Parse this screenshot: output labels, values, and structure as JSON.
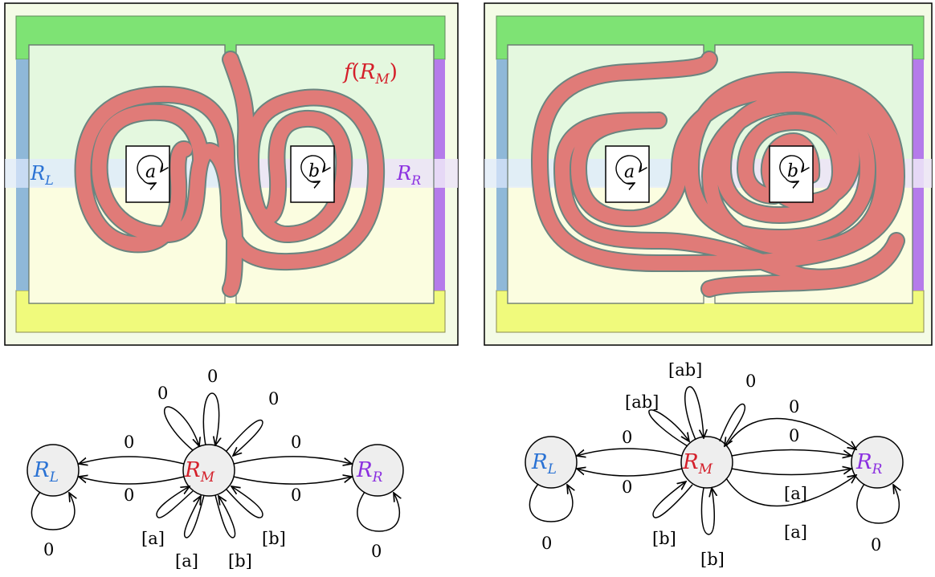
{
  "colors": {
    "left_strip": "#8fb8d8",
    "right_strip": "#b57bea",
    "top_strip": "#7ee374",
    "bottom_strip": "#f0fa7c",
    "tube_fill": "#e07b78",
    "tube_stroke": "#6a8580",
    "region_top": "#e4f8df",
    "region_bottom": "#fbfde0",
    "band": "#e8f0ff",
    "band_mid": "#f7e4ee",
    "label_blue": "#2a72d4",
    "label_red": "#d41f2a",
    "label_purple": "#8b2fe0"
  },
  "panel_left": {
    "label_left": "R_L",
    "label_right": "R_R",
    "image_label": "f(R_M)",
    "hole_a": "a",
    "hole_b": "b"
  },
  "panel_right": {
    "hole_a": "a",
    "hole_b": "b"
  },
  "graph_left": {
    "nodes": [
      {
        "id": "RL",
        "label": "R_L"
      },
      {
        "id": "RM",
        "label": "R_M"
      },
      {
        "id": "RR",
        "label": "R_R"
      }
    ],
    "edge_labels": {
      "top": "0",
      "top_left": "0",
      "top_right": "0",
      "to_RL_upper": "0",
      "to_RL_lower": "0",
      "to_RR_upper": "0",
      "to_RR_lower": "0",
      "loop_RL": "0",
      "loop_RR": "0",
      "bottom_a1": "[a]",
      "bottom_a2": "[a]",
      "bottom_b1": "[b]",
      "bottom_b2": "[b]"
    }
  },
  "graph_right": {
    "nodes": [
      {
        "id": "RL",
        "label": "R_L"
      },
      {
        "id": "RM",
        "label": "R_M"
      },
      {
        "id": "RR",
        "label": "R_R"
      }
    ],
    "edge_labels": {
      "ab_top": "[ab]",
      "ab_left": "[ab]",
      "top_right": "0",
      "to_RL_upper": "0",
      "to_RL_lower": "0",
      "to_RR_1": "0",
      "to_RR_2": "0",
      "to_RR_3": "[a]",
      "to_RR_4": "[a]",
      "loop_RL": "0",
      "loop_RR": "0",
      "bottom_b1": "[b]",
      "bottom_b2": "[b]"
    }
  }
}
